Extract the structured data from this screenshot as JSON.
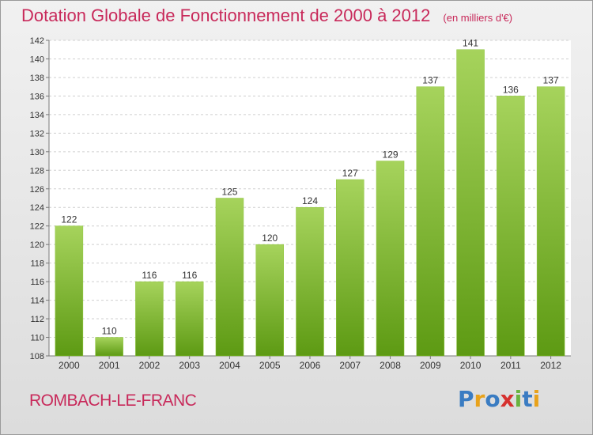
{
  "title": "Dotation Globale de Fonctionnement de 2000 à 2012",
  "unit": "(en milliers d'€)",
  "commune": "ROMBACH-LE-FRANC",
  "logo": {
    "text": "Proxiti",
    "colors": [
      "#3a7cc2",
      "#e8a21b",
      "#3a7cc2",
      "#d6312f",
      "#6ab33f",
      "#3a7cc2",
      "#e8a21b"
    ]
  },
  "colors": {
    "bar_light": "#a6d35c",
    "bar_dark": "#5d9a13",
    "accent": "#c8295a"
  },
  "chart_data": {
    "type": "bar",
    "categories": [
      "2000",
      "2001",
      "2002",
      "2003",
      "2004",
      "2005",
      "2006",
      "2007",
      "2008",
      "2009",
      "2010",
      "2011",
      "2012"
    ],
    "values": [
      122,
      110,
      116,
      116,
      125,
      120,
      124,
      127,
      129,
      137,
      141,
      136,
      137
    ],
    "ylim": [
      108,
      142
    ],
    "yticks": [
      108,
      110,
      112,
      114,
      116,
      118,
      120,
      122,
      124,
      126,
      128,
      130,
      132,
      134,
      136,
      138,
      140,
      142
    ],
    "grid": true,
    "xlabel": "",
    "ylabel": ""
  }
}
